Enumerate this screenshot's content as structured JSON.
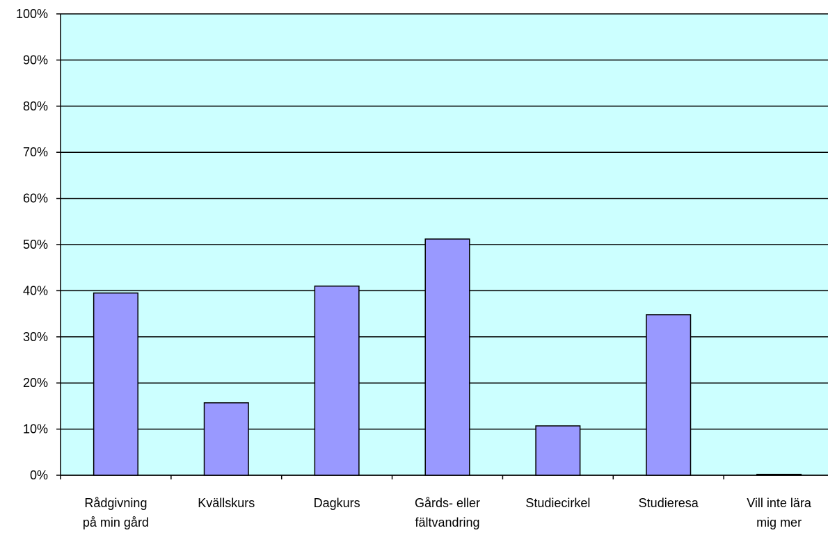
{
  "chart_data": {
    "type": "bar",
    "categories": [
      "Rådgivning\npå min gård",
      "Kvällskurs",
      "Dagkurs",
      "Gårds- eller\nfältvandring",
      "Studiecirkel",
      "Studieresa",
      "Vill inte lära\nmig mer"
    ],
    "values": [
      39.5,
      15.7,
      41,
      51.2,
      10.7,
      34.8,
      0.2
    ],
    "color": "#9999ff",
    "background": "#ccffff",
    "ylim": [
      0,
      100
    ],
    "yticks": [
      {
        "value": 0,
        "label": "0%"
      },
      {
        "value": 10,
        "label": "10%"
      },
      {
        "value": 20,
        "label": "20%"
      },
      {
        "value": 30,
        "label": "30%"
      },
      {
        "value": 40,
        "label": "40%"
      },
      {
        "value": 50,
        "label": "50%"
      },
      {
        "value": 60,
        "label": "60%"
      },
      {
        "value": 70,
        "label": "70%"
      },
      {
        "value": 80,
        "label": "80%"
      },
      {
        "value": 90,
        "label": "90%"
      },
      {
        "value": 100,
        "label": "100%"
      }
    ],
    "grid": true
  }
}
